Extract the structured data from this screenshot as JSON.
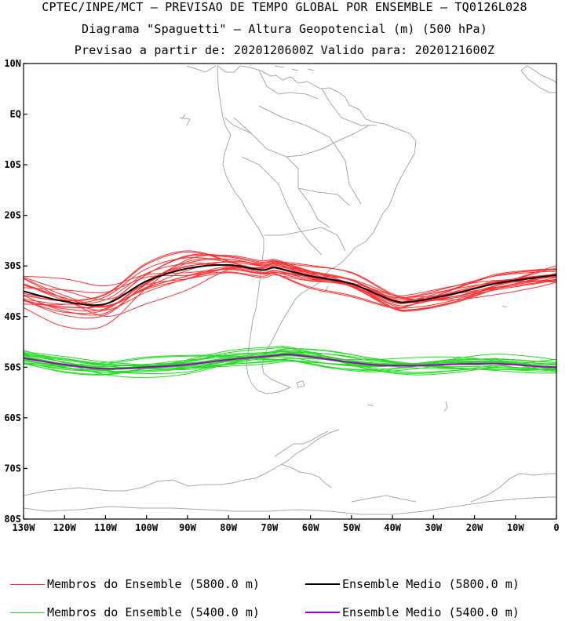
{
  "header": {
    "line1": "CPTEC/INPE/MCT – PREVISAO DE TEMPO GLOBAL POR ENSEMBLE – TQ0126L028",
    "line2": "Diagrama \"Spaguetti\" – Altura Geopotencial (m) (500 hPa)",
    "line3": "Previsao a partir de: 2020120600Z  Valido para: 2020121600Z"
  },
  "map": {
    "lon_range": [
      -130,
      0
    ],
    "lat_range": [
      -80,
      10
    ],
    "y_ticks": [
      {
        "lat": 10,
        "label": "10N"
      },
      {
        "lat": 0,
        "label": "EQ"
      },
      {
        "lat": -10,
        "label": "10S"
      },
      {
        "lat": -20,
        "label": "20S"
      },
      {
        "lat": -30,
        "label": "30S"
      },
      {
        "lat": -40,
        "label": "40S"
      },
      {
        "lat": -50,
        "label": "50S"
      },
      {
        "lat": -60,
        "label": "60S"
      },
      {
        "lat": -70,
        "label": "70S"
      },
      {
        "lat": -80,
        "label": "80S"
      }
    ],
    "x_ticks": [
      {
        "lon": -130,
        "label": "130W"
      },
      {
        "lon": -120,
        "label": "120W"
      },
      {
        "lon": -110,
        "label": "110W"
      },
      {
        "lon": -100,
        "label": "100W"
      },
      {
        "lon": -90,
        "label": "90W"
      },
      {
        "lon": -80,
        "label": "80W"
      },
      {
        "lon": -70,
        "label": "70W"
      },
      {
        "lon": -60,
        "label": "60W"
      },
      {
        "lon": -50,
        "label": "50W"
      },
      {
        "lon": -40,
        "label": "40W"
      },
      {
        "lon": -30,
        "label": "30W"
      },
      {
        "lon": -20,
        "label": "20W"
      },
      {
        "lon": -10,
        "label": "10W"
      },
      {
        "lon": 0,
        "label": "0"
      }
    ]
  },
  "colors": {
    "member_5800": "#ff3030",
    "mean_5800": "#000000",
    "member_5400": "#22dd22",
    "mean_5400": "#a000c0",
    "coast": "#a8a8a8"
  },
  "mean_5800": [
    [
      -130,
      -35
    ],
    [
      -120,
      -37
    ],
    [
      -110,
      -37.5
    ],
    [
      -100,
      -33
    ],
    [
      -90,
      -30.5
    ],
    [
      -80,
      -29.8
    ],
    [
      -72,
      -30.8
    ],
    [
      -69,
      -30.3
    ],
    [
      -66,
      -30.8
    ],
    [
      -60,
      -32
    ],
    [
      -50,
      -33.5
    ],
    [
      -40,
      -36.8
    ],
    [
      -35,
      -37
    ],
    [
      -25,
      -35.5
    ],
    [
      -15,
      -33.5
    ],
    [
      -5,
      -32.3
    ],
    [
      0,
      -31.8
    ]
  ],
  "mean_5400": [
    [
      -130,
      -48.2
    ],
    [
      -120,
      -49.5
    ],
    [
      -110,
      -50.3
    ],
    [
      -100,
      -50
    ],
    [
      -90,
      -49.5
    ],
    [
      -80,
      -48.5
    ],
    [
      -70,
      -47.8
    ],
    [
      -65,
      -47.5
    ],
    [
      -55,
      -48.5
    ],
    [
      -45,
      -49.5
    ],
    [
      -35,
      -49.7
    ],
    [
      -25,
      -49.4
    ],
    [
      -15,
      -49.3
    ],
    [
      -5,
      -49.8
    ],
    [
      0,
      -50
    ]
  ],
  "legend": {
    "member_5800": "Membros do Ensemble (5800.0 m)",
    "mean_5800": "Ensemble Medio (5800.0 m)",
    "member_5400": "Membros do Ensemble (5400.0 m)",
    "mean_5400": "Ensemble Medio (5400.0 m)"
  }
}
